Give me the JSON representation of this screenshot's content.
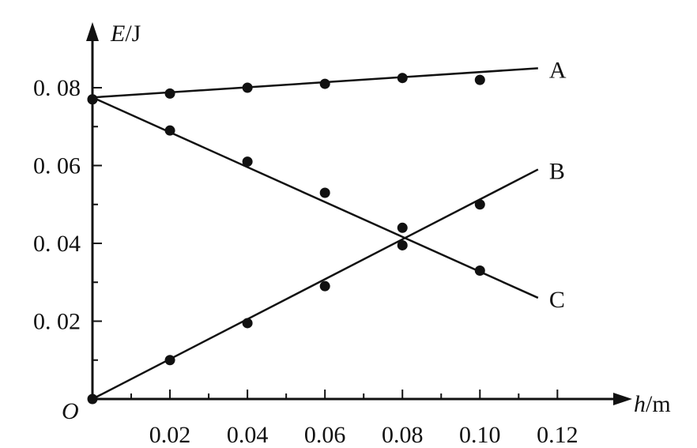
{
  "chart_data": {
    "type": "scatter",
    "title": "",
    "xlabel": {
      "var": "h",
      "unit": "/m"
    },
    "ylabel": {
      "var": "E",
      "unit": "/J"
    },
    "origin_label": "O",
    "xlim": [
      0,
      0.12
    ],
    "ylim": [
      0,
      0.08
    ],
    "x_ticks": [
      0.02,
      0.04,
      0.06,
      0.08,
      0.1,
      0.12
    ],
    "x_tick_labels": [
      "0.02",
      "0.04",
      "0.06",
      "0.08",
      "0.10",
      "0.12"
    ],
    "y_ticks": [
      0.02,
      0.04,
      0.06,
      0.08
    ],
    "y_tick_labels": [
      "0. 02",
      "0. 04",
      "0. 06",
      "0. 08"
    ],
    "grid": false,
    "series": [
      {
        "name": "A",
        "points": [
          [
            0.0,
            0.077
          ],
          [
            0.02,
            0.0785
          ],
          [
            0.04,
            0.08
          ],
          [
            0.06,
            0.081
          ],
          [
            0.08,
            0.0825
          ],
          [
            0.1,
            0.082
          ]
        ],
        "fit_line": [
          [
            0.0,
            0.0775
          ],
          [
            0.115,
            0.085
          ]
        ]
      },
      {
        "name": "B",
        "points": [
          [
            0.0,
            0.0
          ],
          [
            0.02,
            0.01
          ],
          [
            0.04,
            0.0195
          ],
          [
            0.06,
            0.029
          ],
          [
            0.08,
            0.0395
          ],
          [
            0.1,
            0.05
          ]
        ],
        "fit_line": [
          [
            0.0,
            0.0
          ],
          [
            0.115,
            0.059
          ]
        ]
      },
      {
        "name": "C",
        "points": [
          [
            0.0,
            0.077
          ],
          [
            0.02,
            0.069
          ],
          [
            0.04,
            0.061
          ],
          [
            0.06,
            0.053
          ],
          [
            0.08,
            0.044
          ],
          [
            0.1,
            0.033
          ]
        ],
        "fit_line": [
          [
            0.0,
            0.0775
          ],
          [
            0.115,
            0.026
          ]
        ]
      }
    ]
  }
}
